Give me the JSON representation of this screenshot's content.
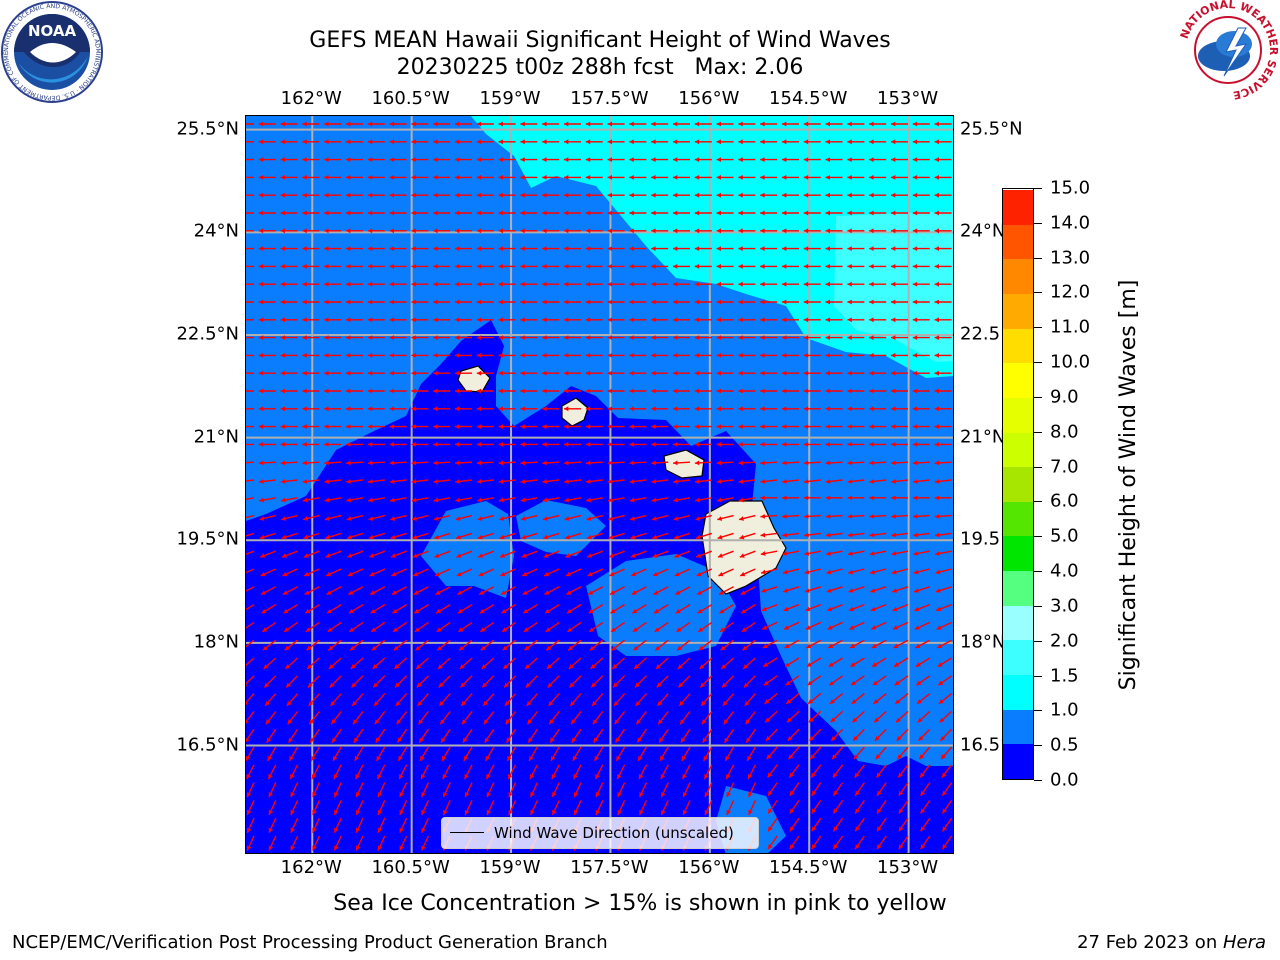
{
  "header": {
    "title_line1": "GEFS MEAN Hawaii Significant Height of Wind Waves",
    "title_line2": "20230225 t00z 288h fcst   Max: 2.06"
  },
  "map": {
    "lon_ticks": [
      "162°W",
      "160.5°W",
      "159°W",
      "157.5°W",
      "156°W",
      "154.5°W",
      "153°W"
    ],
    "lon_values": [
      -162,
      -160.5,
      -159,
      -157.5,
      -156,
      -154.5,
      -153
    ],
    "lat_ticks": [
      "25.5°N",
      "24°N",
      "22.5°N",
      "21°N",
      "19.5°N",
      "18°N",
      "16.5°N"
    ],
    "lat_values": [
      25.5,
      24,
      22.5,
      21,
      19.5,
      18,
      16.5
    ],
    "lon_range": [
      -163,
      -152.3
    ],
    "lat_range": [
      14.9,
      25.7
    ],
    "arrow_color": "#ff0000",
    "grid_color": "#b0b0b0",
    "land_color": "#f0eedc",
    "legend_label": "Wind Wave Direction (unscaled)"
  },
  "colorbar": {
    "title": "Significant Height of Wind Waves [m]",
    "labels": [
      "0.0",
      "0.5",
      "1.0",
      "1.5",
      "2.0",
      "3.0",
      "4.0",
      "5.0",
      "6.0",
      "7.0",
      "8.0",
      "9.0",
      "10.0",
      "11.0",
      "12.0",
      "13.0",
      "14.0",
      "15.0"
    ],
    "colors": [
      "#0000ff",
      "#0a7dff",
      "#00ffff",
      "#3dffff",
      "#9affff",
      "#55ff80",
      "#00e600",
      "#55e600",
      "#a6e600",
      "#ccff00",
      "#e6ff00",
      "#ffff00",
      "#ffdd00",
      "#ffaa00",
      "#ff8800",
      "#ff5500",
      "#ff2200"
    ]
  },
  "footer": {
    "caption": "Sea Ice Concentration > 15% is shown in pink to yellow",
    "left": "NCEP/EMC/Verification Post Processing Product Generation Branch",
    "right_date": "27 Feb 2023 on ",
    "right_host": "Hera"
  },
  "logos": {
    "noaa": "NOAA",
    "noaa_ring": "NATIONAL OCEANIC AND ATMOSPHERIC ADMINISTRATION · U.S. DEPARTMENT OF COMMERCE",
    "nws_ring": "NATIONAL WEATHER SERVICE"
  }
}
